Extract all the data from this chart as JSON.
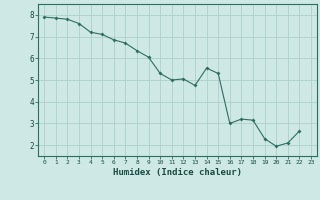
{
  "x": [
    0,
    1,
    2,
    3,
    4,
    5,
    6,
    7,
    8,
    9,
    10,
    11,
    12,
    13,
    14,
    15,
    16,
    17,
    18,
    19,
    20,
    21,
    22,
    23
  ],
  "y": [
    7.9,
    7.85,
    7.8,
    7.6,
    7.2,
    7.1,
    6.85,
    6.7,
    6.35,
    6.05,
    5.3,
    5.0,
    5.05,
    4.75,
    5.55,
    5.3,
    3.0,
    3.2,
    3.15,
    2.3,
    1.95,
    2.1,
    2.65,
    null
  ],
  "xlabel": "Humidex (Indice chaleur)",
  "xlim": [
    -0.5,
    23.5
  ],
  "ylim": [
    1.5,
    8.5
  ],
  "yticks": [
    2,
    3,
    4,
    5,
    6,
    7,
    8
  ],
  "xticks": [
    0,
    1,
    2,
    3,
    4,
    5,
    6,
    7,
    8,
    9,
    10,
    11,
    12,
    13,
    14,
    15,
    16,
    17,
    18,
    19,
    20,
    21,
    22,
    23
  ],
  "line_color": "#2e6e60",
  "marker_color": "#2e6e60",
  "bg_color": "#cde8e5",
  "grid_color": "#aed0cc",
  "axis_color": "#2e6e60",
  "label_color": "#1a4a42",
  "tick_label_color": "#1a4a42"
}
